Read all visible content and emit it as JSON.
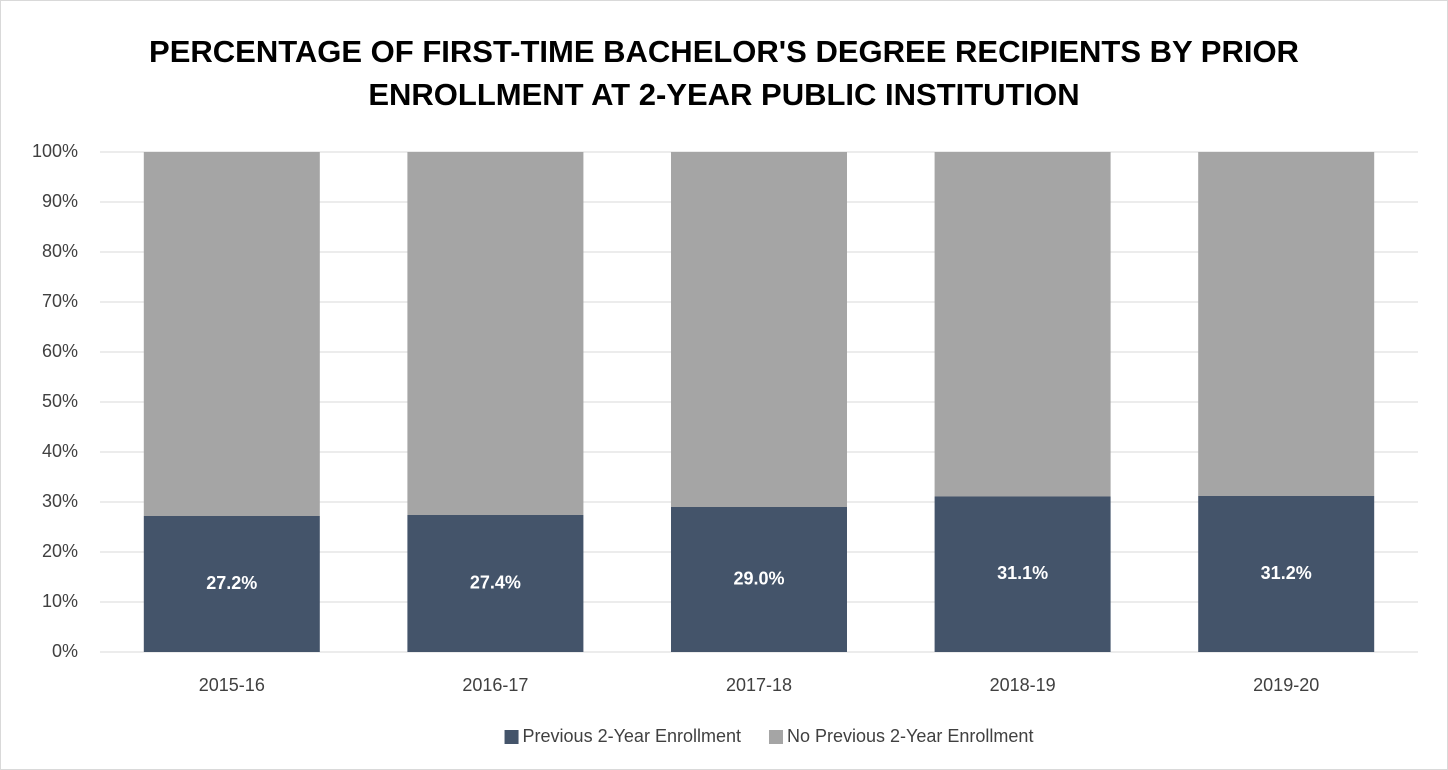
{
  "chart_data": {
    "type": "stacked_bar",
    "title": "PERCENTAGE OF FIRST-TIME BACHELOR'S DEGREE RECIPIENTS BY PRIOR ENROLLMENT AT 2-YEAR PUBLIC INSTITUTION",
    "categories": [
      "2015-16",
      "2016-17",
      "2017-18",
      "2018-19",
      "2019-20"
    ],
    "series": [
      {
        "name": "Previous 2-Year Enrollment",
        "color": "#44546a",
        "values": [
          27.2,
          27.4,
          29.0,
          31.1,
          31.2
        ],
        "value_labels": [
          "27.2%",
          "27.4%",
          "29.0%",
          "31.1%",
          "31.2%"
        ]
      },
      {
        "name": "No Previous 2-Year Enrollment",
        "color": "#a5a5a5",
        "values": [
          72.8,
          72.6,
          71.0,
          68.9,
          68.8
        ]
      }
    ],
    "ylim": [
      0,
      100
    ],
    "yticks": [
      {
        "value": 0,
        "label": "0%"
      },
      {
        "value": 10,
        "label": "10%"
      },
      {
        "value": 20,
        "label": "20%"
      },
      {
        "value": 30,
        "label": "30%"
      },
      {
        "value": 40,
        "label": "40%"
      },
      {
        "value": 50,
        "label": "50%"
      },
      {
        "value": 60,
        "label": "60%"
      },
      {
        "value": 70,
        "label": "70%"
      },
      {
        "value": 80,
        "label": "80%"
      },
      {
        "value": 90,
        "label": "90%"
      },
      {
        "value": 100,
        "label": "100%"
      }
    ],
    "grid": true,
    "legend": "bottom"
  }
}
